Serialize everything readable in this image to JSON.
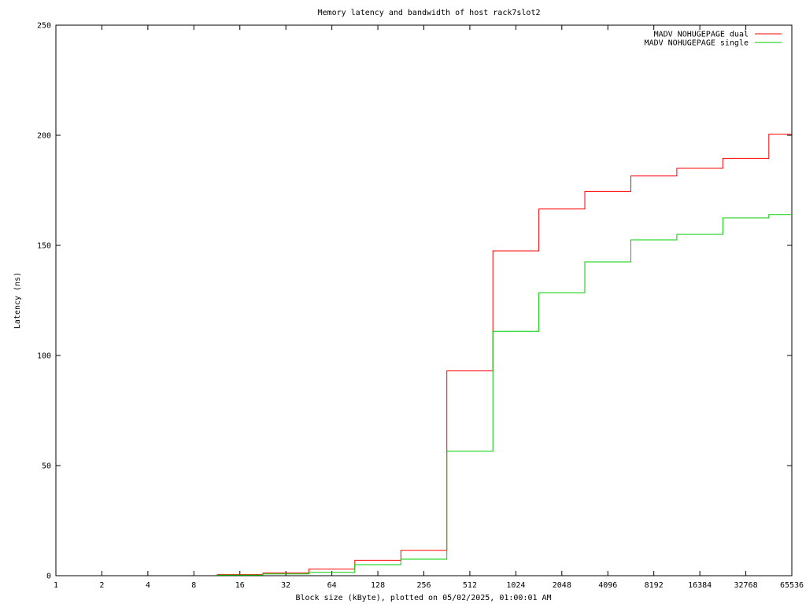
{
  "chart_data": {
    "type": "line",
    "title": "Memory latency and bandwidth of host rack7slot2",
    "xlabel": "Block size (kByte), plotted on 05/02/2025, 01:00:01 AM",
    "ylabel": "Latency (ns)",
    "x_scale": "log2",
    "xlim": [
      1,
      65536
    ],
    "ylim": [
      0,
      250
    ],
    "x_ticks": [
      "1",
      "2",
      "4",
      "8",
      "16",
      "32",
      "64",
      "128",
      "256",
      "512",
      "1024",
      "2048",
      "4096",
      "8192",
      "16384",
      "32768",
      "65536"
    ],
    "y_ticks": [
      "0",
      "50",
      "100",
      "150",
      "200",
      "250"
    ],
    "grid": false,
    "legend_position": "top-right",
    "step": "mid",
    "series": [
      {
        "name": "MADV NOHUGEPAGE dual",
        "color": "#ff0000",
        "points": [
          [
            16,
            0.5
          ],
          [
            32,
            1.2
          ],
          [
            64,
            3.0
          ],
          [
            128,
            7.0
          ],
          [
            256,
            11.5
          ],
          [
            512,
            93.0
          ],
          [
            1024,
            147.5
          ],
          [
            2048,
            166.5
          ],
          [
            4096,
            174.5
          ],
          [
            8192,
            181.5
          ],
          [
            16384,
            185.0
          ],
          [
            32768,
            189.5
          ],
          [
            65536,
            200.5
          ]
        ]
      },
      {
        "name": "MADV NOHUGEPAGE single",
        "color": "#00cc00",
        "points": [
          [
            16,
            0.3
          ],
          [
            32,
            0.8
          ],
          [
            64,
            1.5
          ],
          [
            128,
            5.0
          ],
          [
            256,
            7.5
          ],
          [
            512,
            56.5
          ],
          [
            1024,
            111.0
          ],
          [
            2048,
            128.5
          ],
          [
            4096,
            142.5
          ],
          [
            8192,
            152.5
          ],
          [
            16384,
            155.0
          ],
          [
            32768,
            162.5
          ],
          [
            65536,
            164.0
          ]
        ]
      }
    ]
  }
}
